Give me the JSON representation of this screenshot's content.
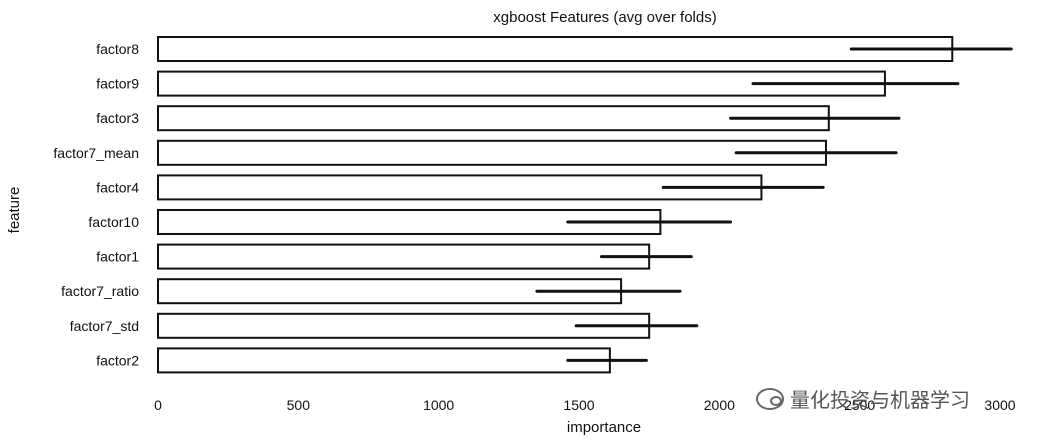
{
  "chart_data": {
    "type": "bar",
    "orientation": "horizontal",
    "title": "xgboost Features (avg over folds)",
    "xlabel": "importance",
    "ylabel": "feature",
    "xlim": [
      0,
      3050
    ],
    "xticks": [
      "0",
      "500",
      "1000",
      "1500",
      "2000",
      "2500",
      "3000"
    ],
    "xtick_values": [
      0,
      500,
      1000,
      1500,
      2000,
      2500,
      3000
    ],
    "categories": [
      "factor8",
      "factor9",
      "factor3",
      "factor7_mean",
      "factor4",
      "factor10",
      "factor1",
      "factor7_ratio",
      "factor7_std",
      "factor2"
    ],
    "values": [
      2830,
      2590,
      2390,
      2380,
      2150,
      1790,
      1750,
      1650,
      1750,
      1610
    ],
    "error_low": [
      2470,
      2120,
      2040,
      2060,
      1800,
      1460,
      1580,
      1350,
      1490,
      1460
    ],
    "error_high": [
      3040,
      2850,
      2640,
      2630,
      2370,
      2040,
      1900,
      1860,
      1920,
      1740
    ],
    "grid": false
  },
  "watermark": {
    "icon": "wechat-icon",
    "text": "量化投资与机器学习"
  }
}
